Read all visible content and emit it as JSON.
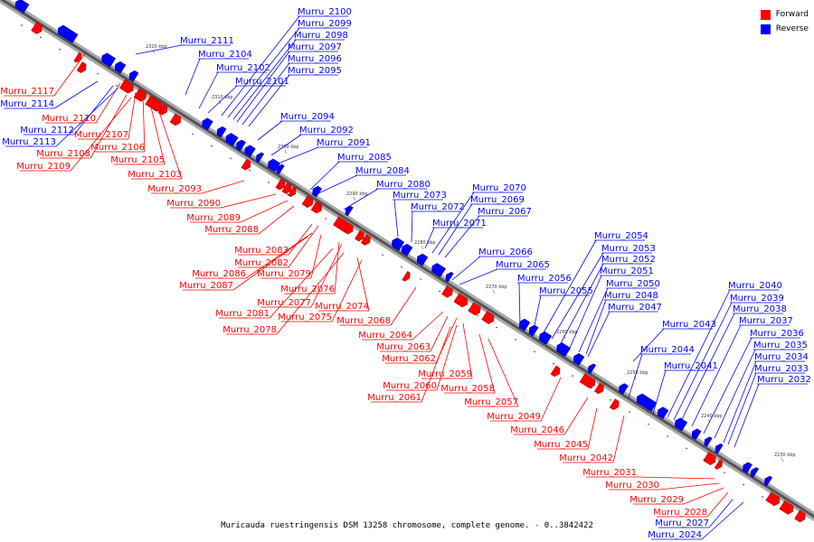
{
  "legend": [
    {
      "label": "Forward",
      "color": "#ff0000"
    },
    {
      "label": "Reverse",
      "color": "#0000ff"
    }
  ],
  "caption": "Muricauda ruestringensis DSM 13258 chromosome, complete genome. - 0..3842422",
  "ticks": [
    "2230 kbp",
    "2240 kbp",
    "2250 kbp",
    "2260 kbp",
    "2270 kbp",
    "2280 kbp",
    "2290 kbp",
    "2300 kbp",
    "2310 kbp",
    "2320 kbp"
  ],
  "genes": [
    {
      "name": "Murru_2117",
      "strand": "forward"
    },
    {
      "name": "Murru_2114",
      "strand": "reverse"
    },
    {
      "name": "Murru_2110",
      "strand": "forward"
    },
    {
      "name": "Murru_2112",
      "strand": "reverse"
    },
    {
      "name": "Murru_2113",
      "strand": "reverse"
    },
    {
      "name": "Murru_2107",
      "strand": "forward"
    },
    {
      "name": "Murru_2106",
      "strand": "forward"
    },
    {
      "name": "Murru_2108",
      "strand": "forward"
    },
    {
      "name": "Murru_2109",
      "strand": "forward"
    },
    {
      "name": "Murru_2105",
      "strand": "forward"
    },
    {
      "name": "Murru_2103",
      "strand": "forward"
    },
    {
      "name": "Murru_2111",
      "strand": "reverse"
    },
    {
      "name": "Murru_2104",
      "strand": "reverse"
    },
    {
      "name": "Murru_2102",
      "strand": "reverse"
    },
    {
      "name": "Murru_2101",
      "strand": "reverse"
    },
    {
      "name": "Murru_2100",
      "strand": "reverse"
    },
    {
      "name": "Murru_2099",
      "strand": "reverse"
    },
    {
      "name": "Murru_2098",
      "strand": "reverse"
    },
    {
      "name": "Murru_2097",
      "strand": "reverse"
    },
    {
      "name": "Murru_2096",
      "strand": "reverse"
    },
    {
      "name": "Murru_2095",
      "strand": "reverse"
    },
    {
      "name": "Murru_2094",
      "strand": "reverse"
    },
    {
      "name": "Murru_2092",
      "strand": "reverse"
    },
    {
      "name": "Murru_2091",
      "strand": "reverse"
    },
    {
      "name": "Murru_2085",
      "strand": "reverse"
    },
    {
      "name": "Murru_2084",
      "strand": "reverse"
    },
    {
      "name": "Murru_2093",
      "strand": "forward"
    },
    {
      "name": "Murru_2090",
      "strand": "forward"
    },
    {
      "name": "Murru_2089",
      "strand": "forward"
    },
    {
      "name": "Murru_2088",
      "strand": "forward"
    },
    {
      "name": "Murru_2080",
      "strand": "reverse"
    },
    {
      "name": "Murru_2073",
      "strand": "reverse"
    },
    {
      "name": "Murru_2072",
      "strand": "reverse"
    },
    {
      "name": "Murru_2071",
      "strand": "reverse"
    },
    {
      "name": "Murru_2070",
      "strand": "reverse"
    },
    {
      "name": "Murru_2069",
      "strand": "reverse"
    },
    {
      "name": "Murru_2067",
      "strand": "reverse"
    },
    {
      "name": "Murru_2083",
      "strand": "forward"
    },
    {
      "name": "Murru_2082",
      "strand": "forward"
    },
    {
      "name": "Murru_2086",
      "strand": "forward"
    },
    {
      "name": "Murru_2079",
      "strand": "forward"
    },
    {
      "name": "Murru_2087",
      "strand": "forward"
    },
    {
      "name": "Murru_2076",
      "strand": "forward"
    },
    {
      "name": "Murru_2077",
      "strand": "forward"
    },
    {
      "name": "Murru_2074",
      "strand": "forward"
    },
    {
      "name": "Murru_2081",
      "strand": "forward"
    },
    {
      "name": "Murru_2075",
      "strand": "forward"
    },
    {
      "name": "Murru_2078",
      "strand": "forward"
    },
    {
      "name": "Murru_2068",
      "strand": "forward"
    },
    {
      "name": "Murru_2066",
      "strand": "reverse"
    },
    {
      "name": "Murru_2065",
      "strand": "reverse"
    },
    {
      "name": "Murru_2056",
      "strand": "reverse"
    },
    {
      "name": "Murru_2055",
      "strand": "reverse"
    },
    {
      "name": "Murru_2064",
      "strand": "forward"
    },
    {
      "name": "Murru_2063",
      "strand": "forward"
    },
    {
      "name": "Murru_2062",
      "strand": "forward"
    },
    {
      "name": "Murru_2059",
      "strand": "forward"
    },
    {
      "name": "Murru_2060",
      "strand": "forward"
    },
    {
      "name": "Murru_2058",
      "strand": "forward"
    },
    {
      "name": "Murru_2061",
      "strand": "forward"
    },
    {
      "name": "Murru_2057",
      "strand": "forward"
    },
    {
      "name": "Murru_2054",
      "strand": "reverse"
    },
    {
      "name": "Murru_2053",
      "strand": "reverse"
    },
    {
      "name": "Murru_2052",
      "strand": "reverse"
    },
    {
      "name": "Murru_2051",
      "strand": "reverse"
    },
    {
      "name": "Murru_2050",
      "strand": "reverse"
    },
    {
      "name": "Murru_2048",
      "strand": "reverse"
    },
    {
      "name": "Murru_2047",
      "strand": "reverse"
    },
    {
      "name": "Murru_2049",
      "strand": "forward"
    },
    {
      "name": "Murru_2046",
      "strand": "forward"
    },
    {
      "name": "Murru_2045",
      "strand": "forward"
    },
    {
      "name": "Murru_2042",
      "strand": "forward"
    },
    {
      "name": "Murru_2043",
      "strand": "reverse"
    },
    {
      "name": "Murru_2044",
      "strand": "reverse"
    },
    {
      "name": "Murru_2041",
      "strand": "reverse"
    },
    {
      "name": "Murru_2040",
      "strand": "reverse"
    },
    {
      "name": "Murru_2039",
      "strand": "reverse"
    },
    {
      "name": "Murru_2038",
      "strand": "reverse"
    },
    {
      "name": "Murru_2037",
      "strand": "reverse"
    },
    {
      "name": "Murru_2036",
      "strand": "reverse"
    },
    {
      "name": "Murru_2035",
      "strand": "reverse"
    },
    {
      "name": "Murru_2034",
      "strand": "reverse"
    },
    {
      "name": "Murru_2033",
      "strand": "reverse"
    },
    {
      "name": "Murru_2032",
      "strand": "reverse"
    },
    {
      "name": "Murru_2031",
      "strand": "forward"
    },
    {
      "name": "Murru_2030",
      "strand": "forward"
    },
    {
      "name": "Murru_2029",
      "strand": "forward"
    },
    {
      "name": "Murru_2028",
      "strand": "forward"
    },
    {
      "name": "Murru_2027",
      "strand": "reverse"
    },
    {
      "name": "Murru_2024",
      "strand": "reverse"
    }
  ]
}
